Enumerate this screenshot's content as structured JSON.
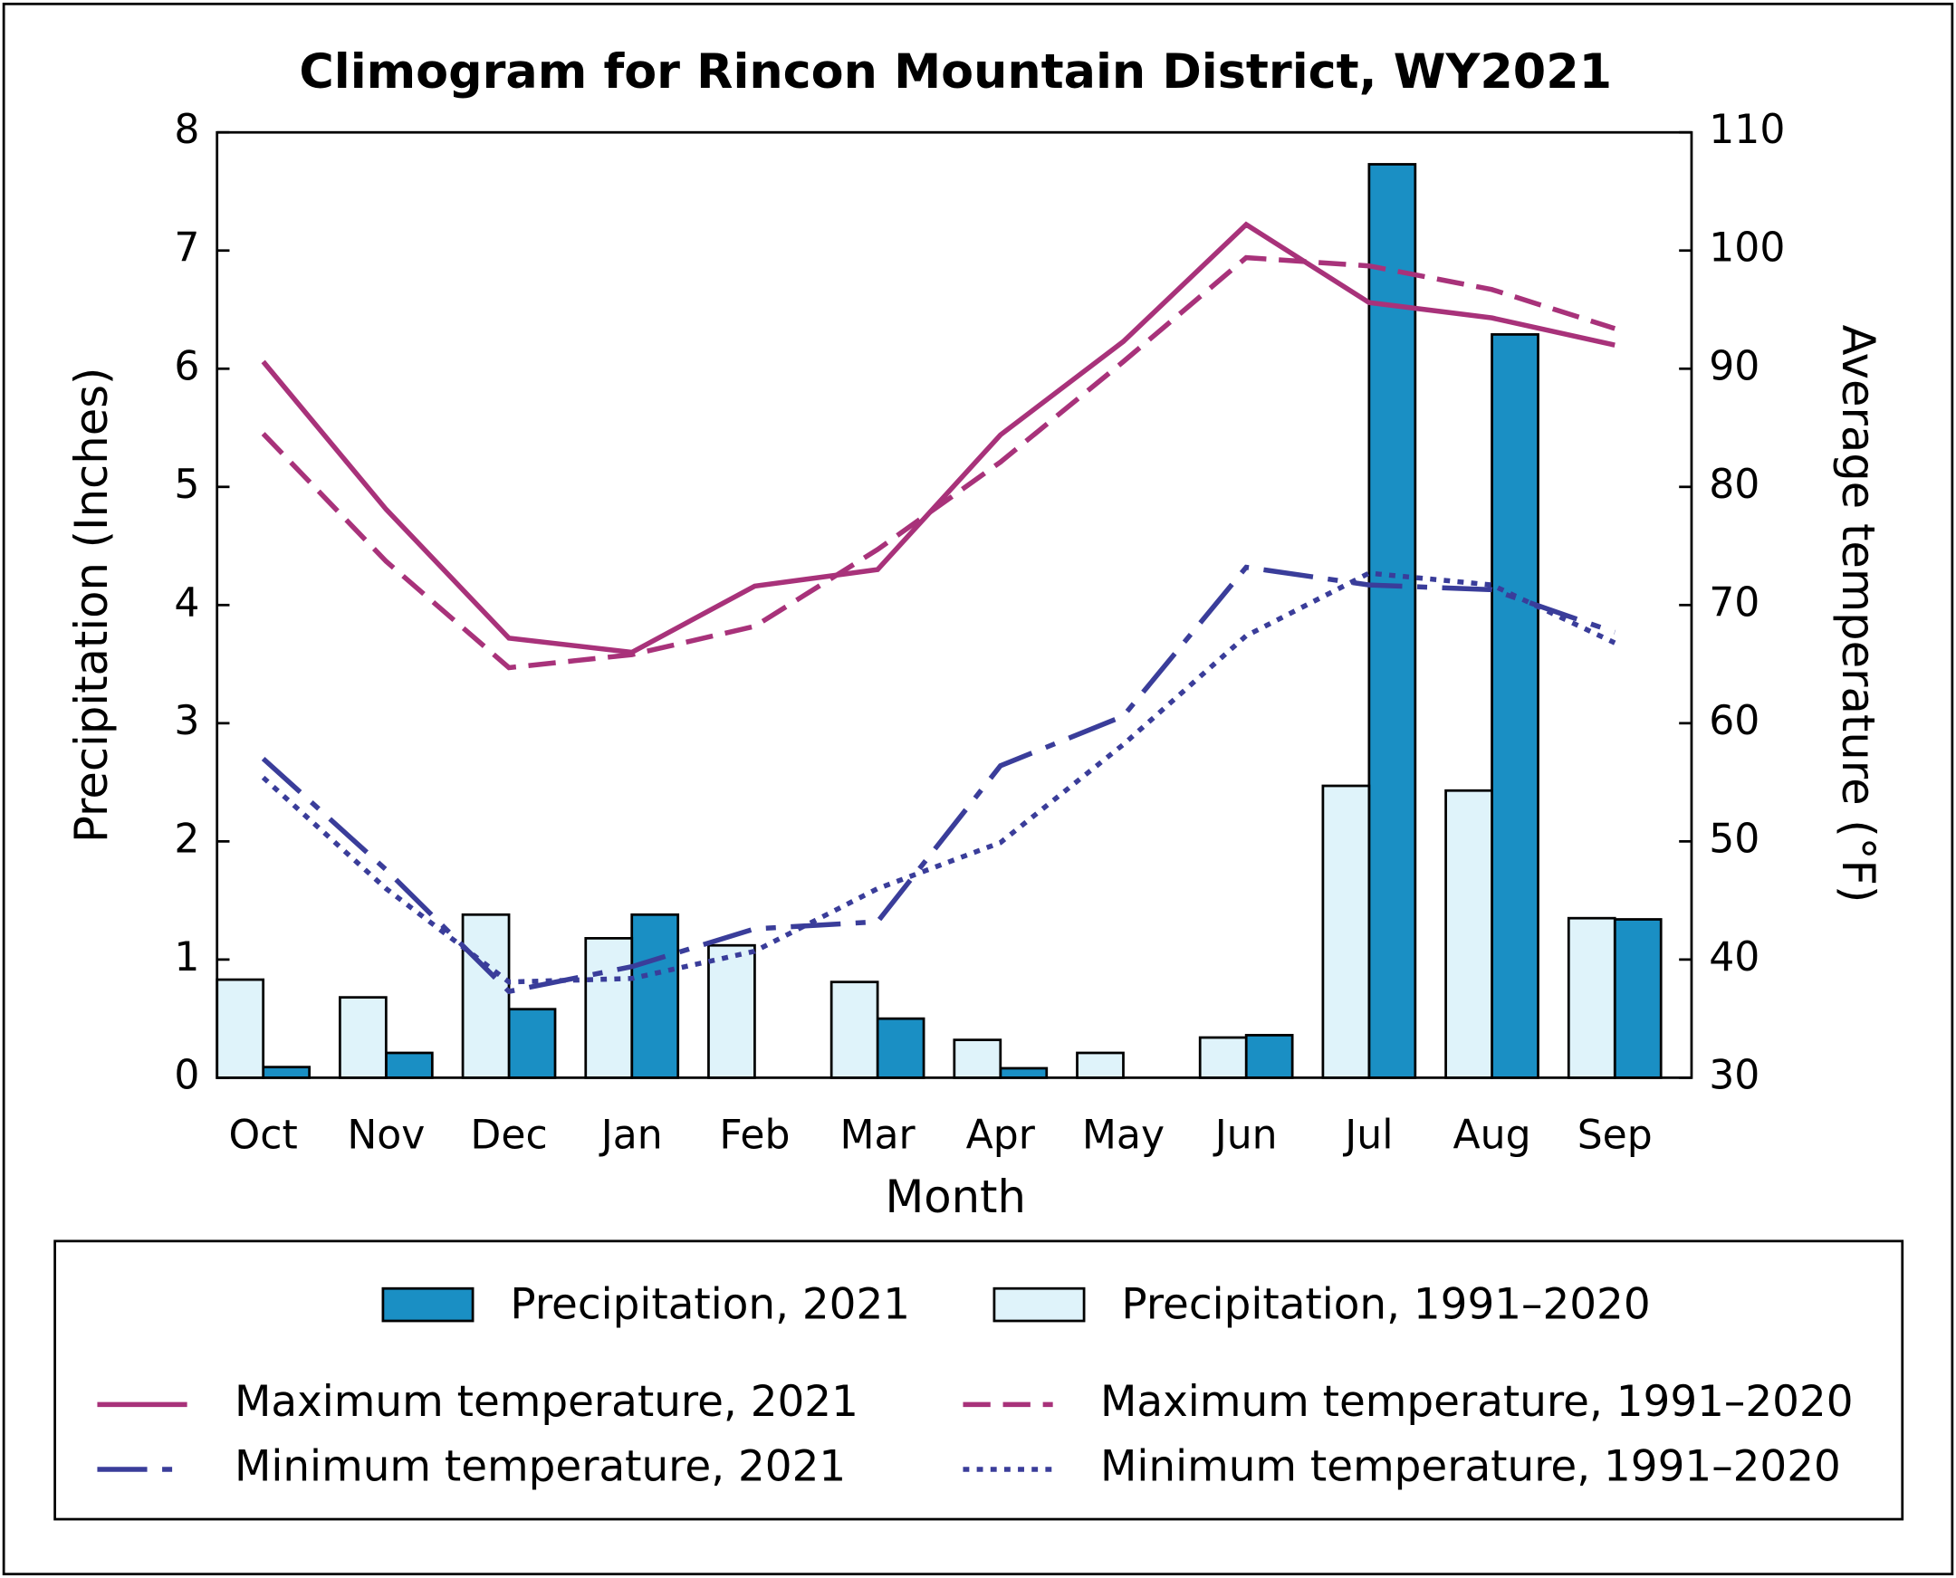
{
  "chart_data": {
    "type": "bar_line",
    "title": "Climogram for Rincon Mountain District, WY2021",
    "x_label": "Month",
    "y_label": "Precipitation (Inches)",
    "y2_label": "Average temperature (°F)",
    "categories": [
      "Oct",
      "Nov",
      "Dec",
      "Jan",
      "Feb",
      "Mar",
      "Apr",
      "May",
      "Jun",
      "Jul",
      "Aug",
      "Sep"
    ],
    "ylim": [
      0,
      8
    ],
    "yticks": [
      0,
      1,
      2,
      3,
      4,
      5,
      6,
      7,
      8
    ],
    "y2lim": [
      30,
      110
    ],
    "y2ticks": [
      30,
      40,
      50,
      60,
      70,
      80,
      90,
      100,
      110
    ],
    "series": [
      {
        "name": "Precipitation, 2021",
        "type": "bar",
        "color": "#1a8fc4",
        "values": [
          0.09,
          0.21,
          0.58,
          1.38,
          0,
          0.5,
          0.08,
          0,
          0.36,
          7.73,
          6.29,
          1.34
        ]
      },
      {
        "name": "Precipitation, 1991–2020",
        "type": "bar",
        "color": "#dff3fa",
        "values": [
          0.83,
          0.68,
          1.38,
          1.18,
          1.12,
          0.81,
          0.32,
          0.21,
          0.34,
          2.47,
          2.43,
          1.35
        ]
      },
      {
        "name": "Maximum temperature, 2021",
        "type": "line",
        "axis": "y2",
        "color": "#a8327a",
        "linestyle": "solid",
        "values": [
          90.6,
          78.1,
          67.2,
          66.0,
          71.6,
          73.0,
          84.4,
          92.3,
          102.2,
          95.6,
          94.3,
          92.0
        ]
      },
      {
        "name": "Maximum temperature, 1991–2020",
        "type": "line",
        "axis": "y2",
        "color": "#a8327a",
        "linestyle": "dashed",
        "values": [
          84.5,
          73.7,
          64.7,
          65.8,
          68.2,
          74.7,
          82.1,
          90.6,
          99.4,
          98.7,
          96.7,
          93.4
        ]
      },
      {
        "name": "Minimum temperature, 2021",
        "type": "line",
        "axis": "y2",
        "color": "#3a3d9a",
        "linestyle": "dashdot",
        "values": [
          57.0,
          47.6,
          37.3,
          39.4,
          42.6,
          43.2,
          56.4,
          60.6,
          73.2,
          71.7,
          71.3,
          67.7
        ]
      },
      {
        "name": "Minimum temperature, 1991–2020",
        "type": "line",
        "axis": "y2",
        "color": "#3a3d9a",
        "linestyle": "dotted",
        "values": [
          55.4,
          46.0,
          38.1,
          38.4,
          40.7,
          46.0,
          49.9,
          58.2,
          67.4,
          72.7,
          71.7,
          66.8
        ]
      }
    ]
  }
}
